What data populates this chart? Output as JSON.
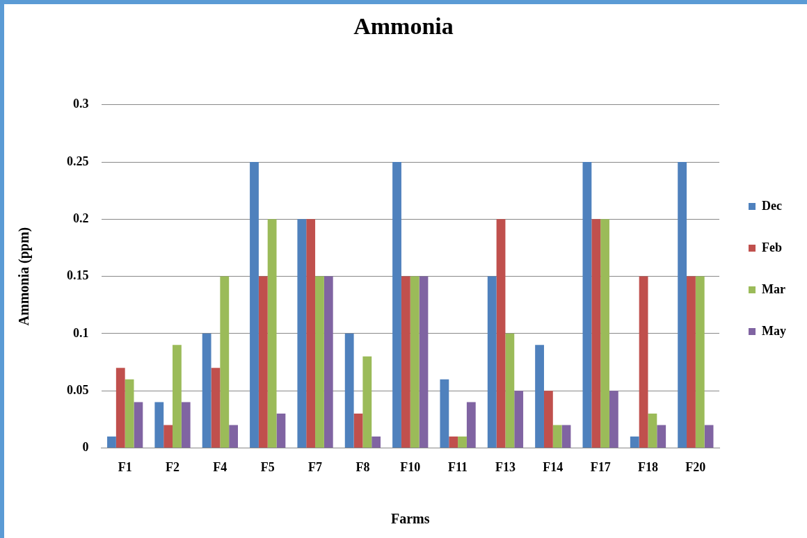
{
  "chart_data": {
    "type": "bar",
    "title": "Ammonia",
    "xlabel": "Farms",
    "ylabel": "Ammonia (ppm)",
    "categories": [
      "F1",
      "F2",
      "F4",
      "F5",
      "F7",
      "F8",
      "F10",
      "F11",
      "F13",
      "F14",
      "F17",
      "F18",
      "F20"
    ],
    "series": [
      {
        "name": "Dec",
        "color": "#4f81bd",
        "values": [
          0.01,
          0.04,
          0.1,
          0.25,
          0.2,
          0.1,
          0.25,
          0.06,
          0.15,
          0.09,
          0.25,
          0.01,
          0.25
        ]
      },
      {
        "name": "Feb",
        "color": "#c0504d",
        "values": [
          0.07,
          0.02,
          0.07,
          0.15,
          0.2,
          0.03,
          0.15,
          0.01,
          0.2,
          0.05,
          0.2,
          0.15,
          0.15
        ]
      },
      {
        "name": "Mar",
        "color": "#9bbb59",
        "values": [
          0.06,
          0.09,
          0.15,
          0.2,
          0.15,
          0.08,
          0.15,
          0.01,
          0.1,
          0.02,
          0.2,
          0.03,
          0.15
        ]
      },
      {
        "name": "May",
        "color": "#8064a2",
        "values": [
          0.04,
          0.04,
          0.02,
          0.03,
          0.15,
          0.01,
          0.15,
          0.04,
          0.05,
          0.02,
          0.05,
          0.02,
          0.02
        ]
      }
    ],
    "ylim": [
      0,
      0.3
    ],
    "yticks": [
      0,
      0.05,
      0.1,
      0.15,
      0.2,
      0.25,
      0.3
    ],
    "grid": "y",
    "legend": "right"
  }
}
